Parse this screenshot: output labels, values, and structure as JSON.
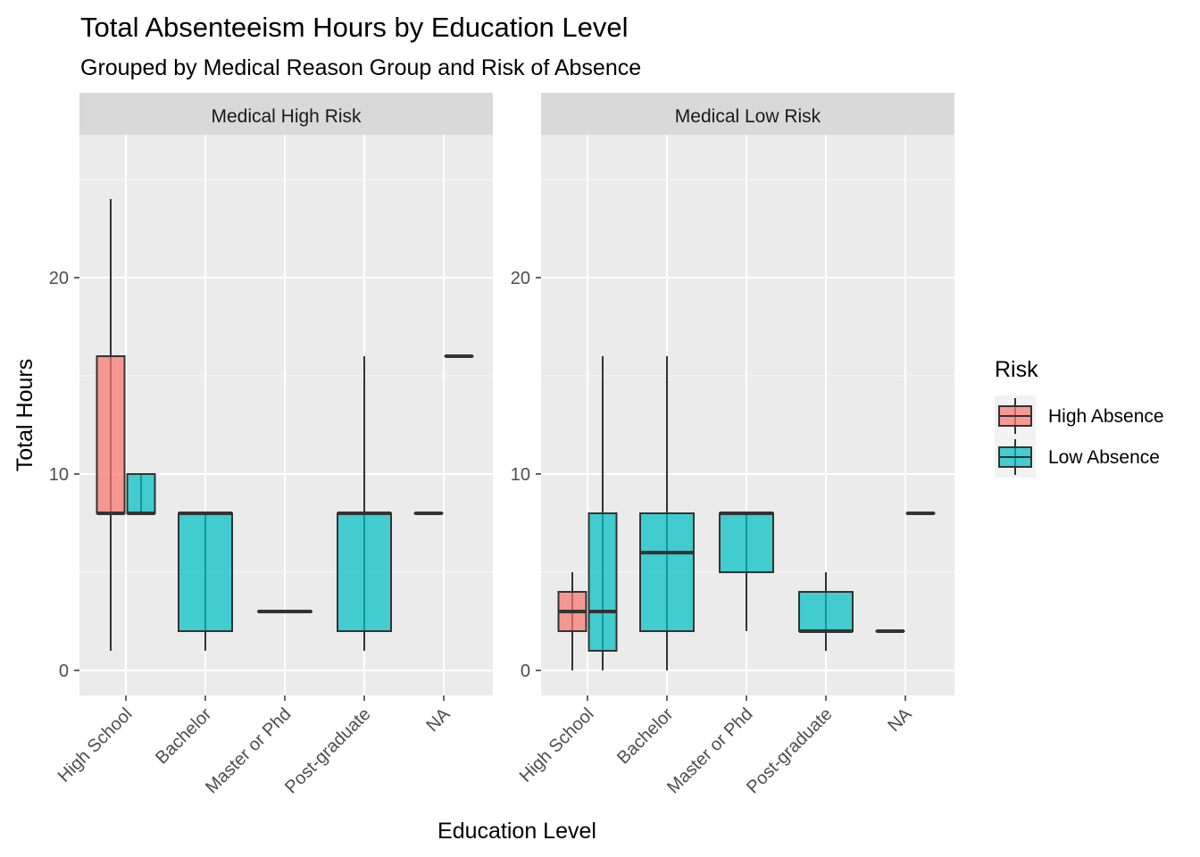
{
  "chart_data": {
    "type": "boxplot",
    "title": "Total Absenteeism Hours by Education Level",
    "subtitle": "Grouped by Medical Reason Group and Risk of Absence",
    "xlabel": "Education Level",
    "ylabel": "Total Hours",
    "categories": [
      "High School",
      "Bachelor",
      "Master or Phd",
      "Post-graduate",
      "NA"
    ],
    "y_ticks": [
      0,
      10,
      20
    ],
    "ylim": [
      -1.2,
      26.1
    ],
    "grid": true,
    "legend": {
      "title": "Risk",
      "position": "right",
      "entries": [
        {
          "name": "High Absence",
          "color": "#F8766D"
        },
        {
          "name": "Low Absence",
          "color": "#00BFC4"
        }
      ]
    },
    "panels": [
      {
        "label": "Medical High Risk",
        "boxes": [
          {
            "category": "High School",
            "risk": "High Absence",
            "min": 1,
            "q1": 8,
            "median": 8,
            "q3": 16,
            "max": 24
          },
          {
            "category": "High School",
            "risk": "Low Absence",
            "min": 8,
            "q1": 8,
            "median": 8,
            "q3": 10,
            "max": 10
          },
          {
            "category": "Bachelor",
            "risk": "Low Absence",
            "min": 1,
            "q1": 2,
            "median": 8,
            "q3": 8,
            "max": 8
          },
          {
            "category": "Master or Phd",
            "risk": "Low Absence",
            "min": 3,
            "q1": 3,
            "median": 3,
            "q3": 3,
            "max": 3
          },
          {
            "category": "Post-graduate",
            "risk": "Low Absence",
            "min": 1,
            "q1": 2,
            "median": 8,
            "q3": 8,
            "max": 16
          },
          {
            "category": "NA",
            "risk": "High Absence",
            "min": 8,
            "q1": 8,
            "median": 8,
            "q3": 8,
            "max": 8
          },
          {
            "category": "NA",
            "risk": "Low Absence",
            "min": 16,
            "q1": 16,
            "median": 16,
            "q3": 16,
            "max": 16
          }
        ]
      },
      {
        "label": "Medical Low Risk",
        "boxes": [
          {
            "category": "High School",
            "risk": "High Absence",
            "min": 0,
            "q1": 2,
            "median": 3,
            "q3": 4,
            "max": 5
          },
          {
            "category": "High School",
            "risk": "Low Absence",
            "min": 0,
            "q1": 1,
            "median": 3,
            "q3": 8,
            "max": 16
          },
          {
            "category": "Bachelor",
            "risk": "Low Absence",
            "min": 0,
            "q1": 2,
            "median": 6,
            "q3": 8,
            "max": 16
          },
          {
            "category": "Master or Phd",
            "risk": "Low Absence",
            "min": 2,
            "q1": 5,
            "median": 8,
            "q3": 8,
            "max": 8
          },
          {
            "category": "Post-graduate",
            "risk": "Low Absence",
            "min": 1,
            "q1": 2,
            "median": 2,
            "q3": 4,
            "max": 5
          },
          {
            "category": "NA",
            "risk": "High Absence",
            "min": 2,
            "q1": 2,
            "median": 2,
            "q3": 2,
            "max": 2
          },
          {
            "category": "NA",
            "risk": "Low Absence",
            "min": 8,
            "q1": 8,
            "median": 8,
            "q3": 8,
            "max": 8
          }
        ]
      }
    ]
  }
}
